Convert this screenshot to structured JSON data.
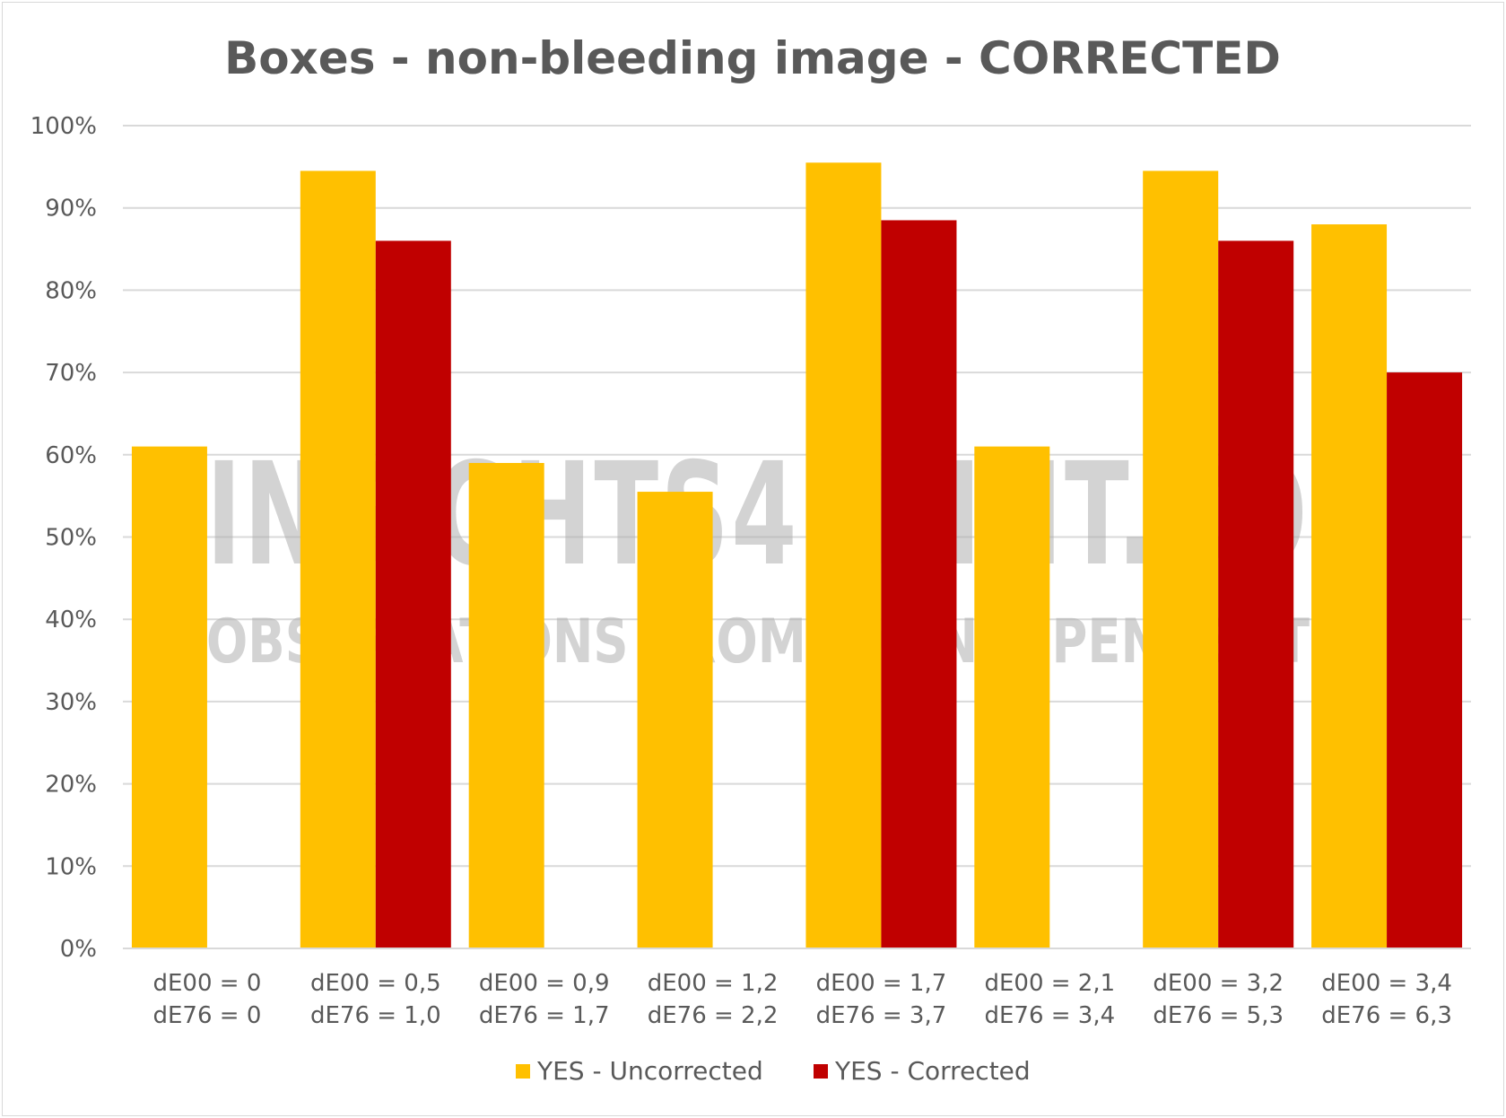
{
  "chart_data": {
    "type": "bar",
    "title": "Boxes - non-bleeding image - CORRECTED",
    "xlabel": "",
    "ylabel": "",
    "ylim": [
      0,
      100
    ],
    "y_ticks": [
      "0%",
      "10%",
      "20%",
      "30%",
      "40%",
      "50%",
      "60%",
      "70%",
      "80%",
      "90%",
      "100%"
    ],
    "categories": [
      [
        "dE00 = 0",
        "dE76 = 0"
      ],
      [
        "dE00 = 0,5",
        "dE76 = 1,0"
      ],
      [
        "dE00 = 0,9",
        "dE76 = 1,7"
      ],
      [
        "dE00 = 1,2",
        "dE76 = 2,2"
      ],
      [
        "dE00 = 1,7",
        "dE76 = 3,7"
      ],
      [
        "dE00 = 2,1",
        "dE76 = 3,4"
      ],
      [
        "dE00 = 3,2",
        "dE76 = 5,3"
      ],
      [
        "dE00 = 3,4",
        "dE76 = 6,3"
      ]
    ],
    "series": [
      {
        "name": "YES - Uncorrected",
        "color": "#FFC000",
        "values": [
          61,
          94.5,
          59,
          55.5,
          95.5,
          61,
          94.5,
          88
        ]
      },
      {
        "name": "YES - Corrected",
        "color": "#C00000",
        "values": [
          0,
          86,
          0,
          0,
          88.5,
          0,
          86,
          70
        ]
      }
    ],
    "grid": true,
    "legend_position": "bottom"
  },
  "watermark": {
    "line1": "INSIGHTS4PRINT.CO",
    "line2": "OBSERVATIONS FROM AN INDEPENDENT"
  }
}
